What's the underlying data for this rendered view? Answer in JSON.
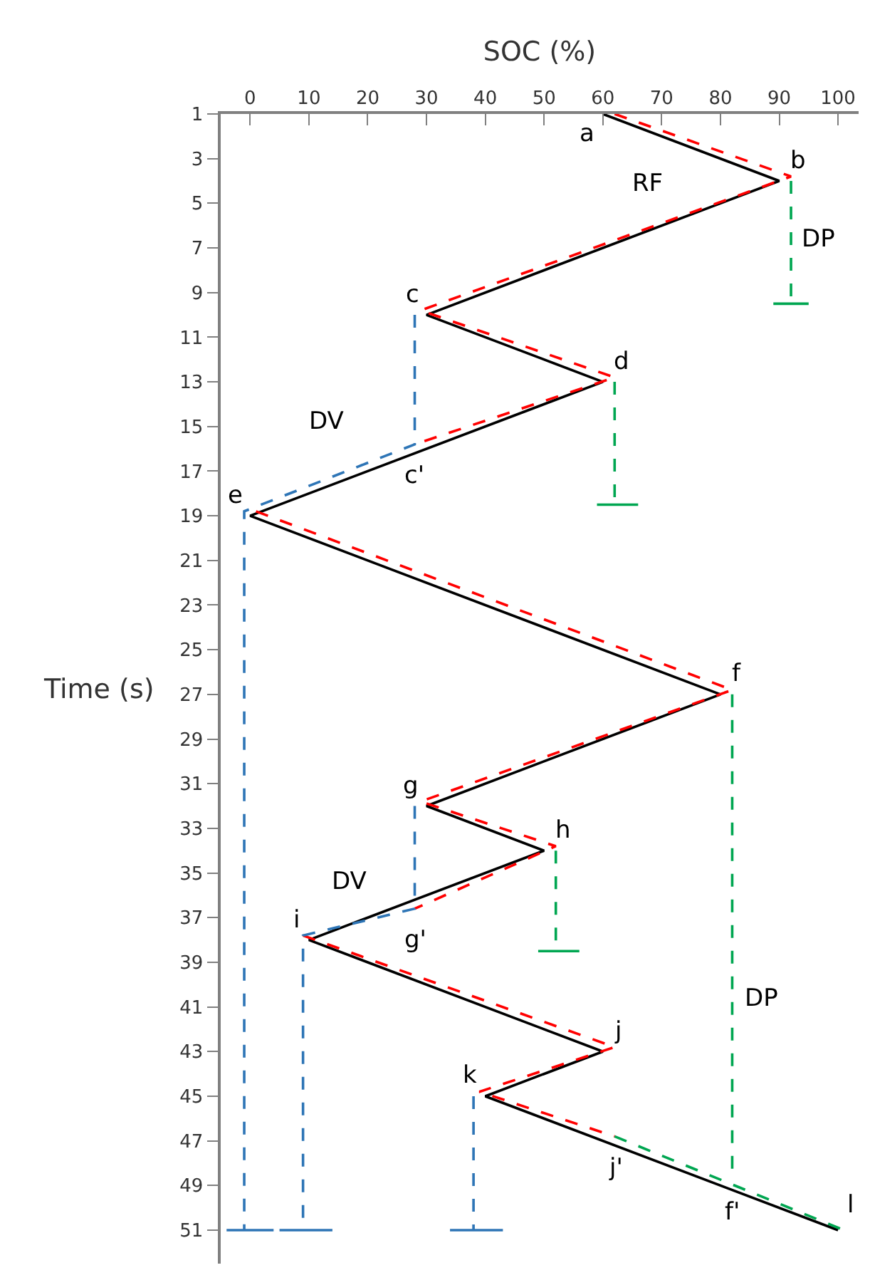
{
  "chart_data": {
    "type": "line",
    "xlabel": "SOC (%)",
    "ylabel": "Time (s)",
    "xlim": [
      -5,
      103.5
    ],
    "xticks": [
      0,
      10,
      20,
      30,
      40,
      50,
      60,
      70,
      80,
      90,
      100
    ],
    "ylim": [
      52.5,
      1
    ],
    "yticks": [
      1,
      3,
      5,
      7,
      9,
      11,
      13,
      15,
      17,
      19,
      21,
      23,
      25,
      27,
      29,
      31,
      33,
      35,
      37,
      39,
      41,
      43,
      45,
      47,
      49,
      51
    ],
    "marker": "none",
    "series": [
      {
        "color": "#000000",
        "line_style": "solid",
        "x": [
          60,
          90,
          30,
          60,
          0,
          80,
          30,
          50,
          10,
          60,
          40,
          100
        ],
        "values": [
          1,
          4,
          10,
          13,
          19,
          27,
          32,
          34,
          38,
          43,
          45,
          51
        ]
      },
      {
        "color": "#ff0000",
        "line_style": "dashed",
        "x": [
          62,
          92,
          29,
          62,
          28,
          null,
          1,
          82,
          29,
          52,
          28,
          null,
          9,
          62,
          39,
          62
        ],
        "values": [
          1,
          3.8,
          9.8,
          12.8,
          15.8,
          null,
          18.8,
          26.8,
          31.8,
          33.8,
          36.6,
          null,
          37.8,
          42.8,
          44.8,
          46.8
        ]
      },
      {
        "color": "#2e75b6",
        "line_style": "dashed",
        "x": [
          28,
          28,
          -1,
          -1,
          null,
          28,
          28,
          9,
          9,
          null,
          38,
          38
        ],
        "values": [
          10,
          15.8,
          18.8,
          51,
          null,
          32,
          36.6,
          37.8,
          51,
          null,
          45,
          51
        ]
      },
      {
        "color": "#2e75b6",
        "line_style": "solid",
        "x": [
          -4,
          4,
          null,
          5,
          14,
          null,
          34,
          43
        ],
        "values": [
          51,
          51,
          null,
          51,
          51,
          null,
          51,
          51
        ]
      },
      {
        "color": "#00a651",
        "line_style": "dashed",
        "x": [
          92,
          92,
          null,
          62,
          62,
          null,
          82,
          82,
          null,
          52,
          52,
          null,
          62,
          101
        ],
        "values": [
          4,
          9.5,
          null,
          13,
          18.5,
          null,
          27,
          48.8,
          null,
          34,
          38.5,
          null,
          46.8,
          51
        ]
      },
      {
        "color": "#00a651",
        "line_style": "solid",
        "x": [
          89,
          95,
          null,
          59,
          66,
          null,
          49,
          56
        ],
        "values": [
          9.5,
          9.5,
          null,
          18.5,
          18.5,
          null,
          38.5,
          38.5
        ]
      }
    ],
    "annotations": [
      {
        "text": "a",
        "x": 60,
        "y": 1
      },
      {
        "text": "b",
        "x": 90,
        "y": 4
      },
      "RF",
      "DP",
      {
        "text": "c",
        "x": 30,
        "y": 10
      },
      {
        "text": "d",
        "x": 60,
        "y": 13
      },
      "DV",
      {
        "text": "c'",
        "x": 28,
        "y": 15.8
      },
      {
        "text": "e",
        "x": 0,
        "y": 19
      },
      {
        "text": "f",
        "x": 80,
        "y": 27
      },
      {
        "text": "g",
        "x": 30,
        "y": 32
      },
      {
        "text": "h",
        "x": 50,
        "y": 34
      },
      "DV",
      {
        "text": "g'",
        "x": 28,
        "y": 36.6
      },
      {
        "text": "i",
        "x": 10,
        "y": 38
      },
      "DP",
      {
        "text": "j",
        "x": 60,
        "y": 43
      },
      {
        "text": "k",
        "x": 40,
        "y": 45
      },
      {
        "text": "j'",
        "x": 62,
        "y": 46.8
      },
      {
        "text": "f'",
        "x": 82,
        "y": 48.8
      },
      {
        "text": "l",
        "x": 100,
        "y": 51
      }
    ]
  }
}
